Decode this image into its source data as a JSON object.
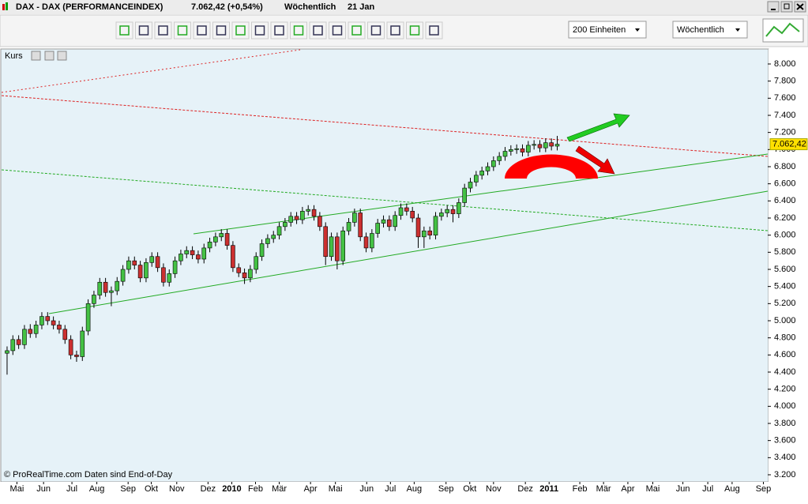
{
  "window": {
    "title": "DAX - DAX (PERFORMANCEINDEX)",
    "price": "7.062,42 (+0,54%)",
    "interval": "Wöchentlich",
    "date": "21 Jan"
  },
  "toolbar": {
    "units": "200 Einheiten",
    "period": "Wöchentlich"
  },
  "panel": {
    "label": "Kurs",
    "last_price_label": "7.062,42",
    "footer": "© ProRealTime.com  Daten sind End-of-Day"
  },
  "chart_data": {
    "type": "candlestick",
    "up_color": "#44c144",
    "down_color": "#cc3030",
    "x": [
      0,
      1,
      2,
      3,
      4,
      5,
      6,
      7,
      8,
      9,
      10,
      11,
      12,
      13,
      14,
      15,
      16,
      17,
      18,
      19,
      20,
      21,
      22,
      23,
      24,
      25,
      26,
      27,
      28,
      29,
      30,
      31,
      32,
      33,
      34,
      35,
      36,
      37,
      38,
      39,
      40,
      41,
      42,
      43,
      44,
      45,
      46,
      47,
      48,
      49,
      50,
      51,
      52,
      53,
      54,
      55,
      56,
      57,
      58,
      59,
      60,
      61,
      62,
      63,
      64,
      65,
      66,
      67,
      68,
      69,
      70,
      71,
      72,
      73,
      74,
      75,
      76,
      77,
      78,
      79,
      80,
      81,
      82,
      83,
      84,
      85,
      86,
      87,
      88,
      89,
      90,
      91,
      92,
      93,
      94,
      95
    ],
    "open": [
      4620,
      4650,
      4780,
      4720,
      4900,
      4850,
      4950,
      5050,
      5000,
      4950,
      4900,
      4780,
      4600,
      4580,
      4880,
      5200,
      5300,
      5450,
      5330,
      5350,
      5460,
      5600,
      5700,
      5650,
      5500,
      5680,
      5750,
      5620,
      5450,
      5550,
      5700,
      5780,
      5820,
      5770,
      5720,
      5850,
      5920,
      5980,
      6020,
      5880,
      5620,
      5560,
      5500,
      5600,
      5750,
      5900,
      5960,
      6000,
      6100,
      6150,
      6220,
      6180,
      6280,
      6300,
      6220,
      6100,
      5750,
      5980,
      5700,
      6050,
      6150,
      6260,
      5980,
      5850,
      6020,
      6140,
      6180,
      6100,
      6230,
      6320,
      6280,
      6200,
      5980,
      6050,
      6000,
      6220,
      6260,
      6300,
      6250,
      6380,
      6550,
      6620,
      6700,
      6750,
      6800,
      6870,
      6920,
      6980,
      7000,
      7010,
      6970,
      7050,
      7060,
      7020,
      7080,
      7040
    ],
    "high": [
      4700,
      4830,
      4830,
      4950,
      4960,
      5000,
      5100,
      5100,
      5050,
      5000,
      4950,
      4830,
      4650,
      4930,
      5250,
      5350,
      5500,
      5500,
      5400,
      5510,
      5650,
      5750,
      5750,
      5700,
      5730,
      5800,
      5800,
      5670,
      5600,
      5750,
      5830,
      5870,
      5870,
      5820,
      5900,
      5970,
      6030,
      6070,
      6070,
      5930,
      5670,
      5610,
      5650,
      5800,
      5950,
      6010,
      6050,
      6150,
      6200,
      6270,
      6270,
      6330,
      6350,
      6350,
      6270,
      6150,
      6030,
      6030,
      6100,
      6200,
      6310,
      6310,
      6030,
      6070,
      6190,
      6230,
      6230,
      6280,
      6370,
      6370,
      6330,
      6250,
      6100,
      6100,
      6270,
      6310,
      6350,
      6350,
      6430,
      6600,
      6670,
      6750,
      6800,
      6850,
      6920,
      6970,
      7030,
      7050,
      7060,
      7060,
      7100,
      7110,
      7110,
      7130,
      7130,
      7160
    ],
    "low": [
      4370,
      4600,
      4670,
      4670,
      4800,
      4800,
      4900,
      4950,
      4900,
      4850,
      4730,
      4550,
      4520,
      4530,
      4830,
      5150,
      5250,
      5280,
      5170,
      5300,
      5410,
      5550,
      5600,
      5450,
      5450,
      5630,
      5570,
      5400,
      5400,
      5500,
      5650,
      5730,
      5720,
      5670,
      5670,
      5800,
      5870,
      5930,
      5830,
      5570,
      5510,
      5430,
      5450,
      5550,
      5700,
      5850,
      5910,
      5950,
      6050,
      6100,
      6130,
      6130,
      6230,
      6170,
      6050,
      5650,
      5700,
      5600,
      5650,
      6000,
      6100,
      5930,
      5800,
      5800,
      5970,
      6090,
      6050,
      6050,
      6180,
      6230,
      6150,
      5850,
      5850,
      5950,
      5950,
      6170,
      6210,
      6150,
      6200,
      6330,
      6500,
      6570,
      6650,
      6700,
      6750,
      6820,
      6870,
      6930,
      6950,
      6920,
      6920,
      7000,
      6970,
      6970,
      6990,
      6990
    ],
    "close": [
      4650,
      4780,
      4720,
      4900,
      4850,
      4950,
      5050,
      5000,
      4950,
      4900,
      4780,
      4600,
      4580,
      4880,
      5200,
      5300,
      5450,
      5330,
      5350,
      5460,
      5600,
      5700,
      5650,
      5500,
      5680,
      5750,
      5620,
      5450,
      5550,
      5700,
      5780,
      5820,
      5770,
      5720,
      5850,
      5920,
      5980,
      6020,
      5880,
      5620,
      5560,
      5500,
      5600,
      5750,
      5900,
      5960,
      6000,
      6100,
      6150,
      6220,
      6180,
      6280,
      6300,
      6220,
      6100,
      5750,
      5980,
      5700,
      6050,
      6150,
      6260,
      5980,
      5850,
      6020,
      6140,
      6180,
      6100,
      6230,
      6320,
      6280,
      6200,
      5980,
      6050,
      6000,
      6220,
      6260,
      6300,
      6250,
      6380,
      6550,
      6620,
      6700,
      6750,
      6800,
      6870,
      6920,
      6980,
      7000,
      7010,
      6970,
      7050,
      7060,
      7020,
      7080,
      7040,
      7062.42
    ],
    "xlim": [
      -0.95,
      131.35
    ],
    "ylim": [
      3117,
      8166
    ],
    "xticks": [
      {
        "value": 1.7,
        "label": "Mai"
      },
      {
        "value": 6.3,
        "label": "Jun"
      },
      {
        "value": 11.2,
        "label": "Jul"
      },
      {
        "value": 15.5,
        "label": "Aug"
      },
      {
        "value": 20.9,
        "label": "Sep"
      },
      {
        "value": 24.9,
        "label": "Okt"
      },
      {
        "value": 29.3,
        "label": "Nov"
      },
      {
        "value": 34.7,
        "label": "Dez"
      },
      {
        "value": 38.8,
        "label": "2010"
      },
      {
        "value": 42.9,
        "label": "Feb"
      },
      {
        "value": 47,
        "label": "Mär"
      },
      {
        "value": 52.4,
        "label": "Apr"
      },
      {
        "value": 56.7,
        "label": "Mai"
      },
      {
        "value": 62.1,
        "label": "Jun"
      },
      {
        "value": 66.2,
        "label": "Jul"
      },
      {
        "value": 70.3,
        "label": "Aug"
      },
      {
        "value": 75.8,
        "label": "Sep"
      },
      {
        "value": 79.9,
        "label": "Okt"
      },
      {
        "value": 84,
        "label": "Nov"
      },
      {
        "value": 89.5,
        "label": "Dez"
      },
      {
        "value": 93.6,
        "label": "2011"
      },
      {
        "value": 98.9,
        "label": "Feb"
      },
      {
        "value": 103,
        "label": "Mär"
      },
      {
        "value": 107.2,
        "label": "Apr"
      },
      {
        "value": 111.5,
        "label": "Mai"
      },
      {
        "value": 116.7,
        "label": "Jun"
      },
      {
        "value": 121,
        "label": "Jul"
      },
      {
        "value": 125.2,
        "label": "Aug"
      },
      {
        "value": 130.6,
        "label": "Sep"
      }
    ],
    "yticks": [
      {
        "value": 8000,
        "label": "8.000"
      },
      {
        "value": 7800,
        "label": "7.800"
      },
      {
        "value": 7600,
        "label": "7.600"
      },
      {
        "value": 7400,
        "label": "7.400"
      },
      {
        "value": 7200,
        "label": "7.200"
      },
      {
        "value": 7000,
        "label": "7.000"
      },
      {
        "value": 6800,
        "label": "6.800"
      },
      {
        "value": 6600,
        "label": "6.600"
      },
      {
        "value": 6400,
        "label": "6.400"
      },
      {
        "value": 6200,
        "label": "6.200"
      },
      {
        "value": 6000,
        "label": "6.000"
      },
      {
        "value": 5800,
        "label": "5.800"
      },
      {
        "value": 5600,
        "label": "5.600"
      },
      {
        "value": 5400,
        "label": "5.400"
      },
      {
        "value": 5200,
        "label": "5.200"
      },
      {
        "value": 5000,
        "label": "5.000"
      },
      {
        "value": 4800,
        "label": "4.800"
      },
      {
        "value": 4600,
        "label": "4.600"
      },
      {
        "value": 4400,
        "label": "4.400"
      },
      {
        "value": 4200,
        "label": "4.200"
      },
      {
        "value": 4000,
        "label": "4.000"
      },
      {
        "value": 3800,
        "label": "3.800"
      },
      {
        "value": 3600,
        "label": "3.600"
      },
      {
        "value": 3400,
        "label": "3.400"
      },
      {
        "value": 3200,
        "label": "3.200"
      }
    ]
  }
}
